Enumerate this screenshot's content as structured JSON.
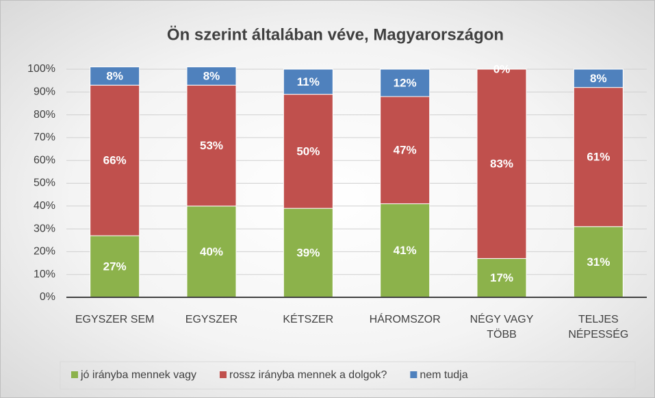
{
  "chart_data": {
    "type": "stacked_bar",
    "title": "Ön szerint általában véve, Magyarországon",
    "categories": [
      "EGYSZER SEM",
      "EGYSZER",
      "KÉTSZER",
      "HÁROMSZOR",
      "NÉGY VAGY TÖBB",
      "TELJES NÉPESSÉG"
    ],
    "series": [
      {
        "name": "jó irányba mennek vagy",
        "color": "#8cb24b",
        "values": [
          27,
          40,
          39,
          41,
          17,
          31
        ],
        "value_labels": [
          "27%",
          "40%",
          "39%",
          "41%",
          "17%",
          "31%"
        ]
      },
      {
        "name": "rossz irányba mennek a dolgok?",
        "color": "#c0504d",
        "values": [
          66,
          53,
          50,
          47,
          83,
          61
        ],
        "value_labels": [
          "66%",
          "53%",
          "50%",
          "47%",
          "83%",
          "61%"
        ]
      },
      {
        "name": "nem tudja",
        "color": "#4f81bd",
        "values": [
          8,
          8,
          11,
          12,
          0,
          8
        ],
        "value_labels": [
          "8%",
          "8%",
          "11%",
          "12%",
          "0%",
          "8%"
        ]
      }
    ],
    "ylim": [
      0,
      100
    ],
    "yticks": [
      {
        "value": 0,
        "label": "0%"
      },
      {
        "value": 10,
        "label": "10%"
      },
      {
        "value": 20,
        "label": "20%"
      },
      {
        "value": 30,
        "label": "30%"
      },
      {
        "value": 40,
        "label": "40%"
      },
      {
        "value": 50,
        "label": "50%"
      },
      {
        "value": 60,
        "label": "60%"
      },
      {
        "value": 70,
        "label": "70%"
      },
      {
        "value": 80,
        "label": "80%"
      },
      {
        "value": 90,
        "label": "90%"
      },
      {
        "value": 100,
        "label": "100%"
      }
    ],
    "grid": true,
    "legend": "bottom"
  }
}
